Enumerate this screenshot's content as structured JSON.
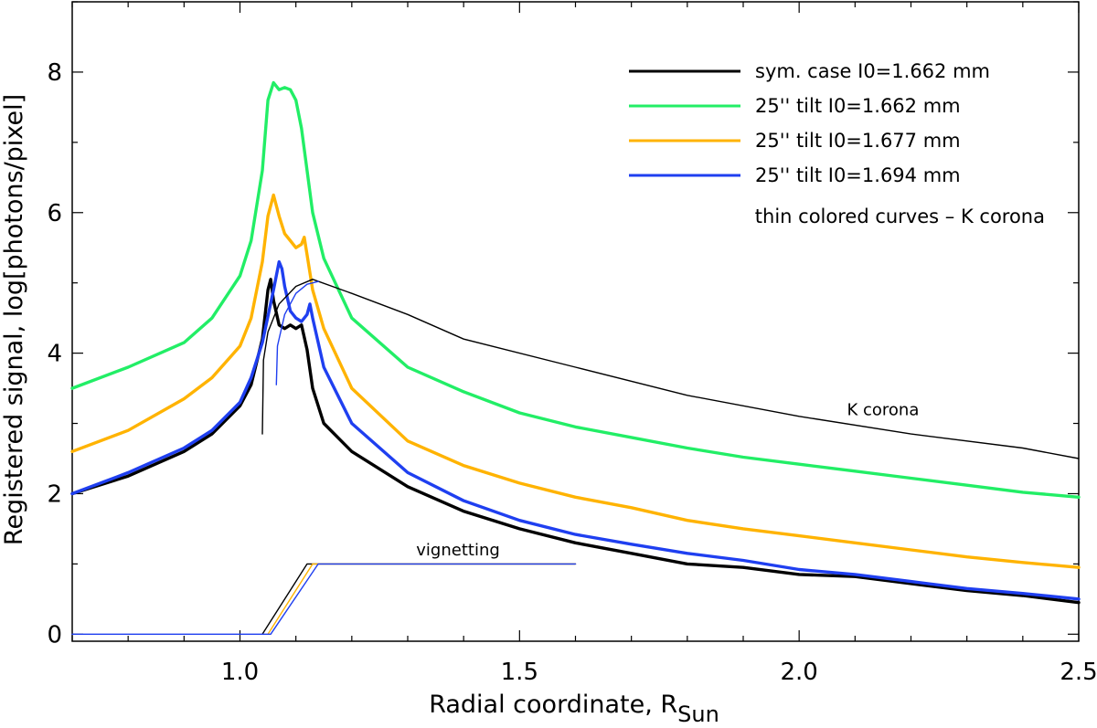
{
  "chart_data": {
    "type": "line",
    "xlabel": "Radial coordinate, R",
    "xlabel_subscript": "Sun",
    "ylabel": "Registered signal, log[photons/pixel]",
    "xlim": [
      0.7,
      2.5
    ],
    "ylim": [
      -0.1,
      9.0
    ],
    "x_ticks": [
      1.0,
      1.5,
      2.0,
      2.5
    ],
    "x_tick_labels": [
      "1.0",
      "1.5",
      "2.0",
      "2.5"
    ],
    "y_ticks": [
      0,
      2,
      4,
      6,
      8
    ],
    "y_tick_labels": [
      "0",
      "2",
      "4",
      "6",
      "8"
    ],
    "series": [
      {
        "name": "sym. case I0=1.662 mm",
        "color": "#000000",
        "width": "thick",
        "x": [
          0.7,
          0.8,
          0.9,
          0.95,
          1.0,
          1.02,
          1.04,
          1.05,
          1.055,
          1.06,
          1.07,
          1.08,
          1.09,
          1.1,
          1.11,
          1.12,
          1.13,
          1.15,
          1.2,
          1.3,
          1.4,
          1.5,
          1.6,
          1.7,
          1.8,
          1.9,
          2.0,
          2.1,
          2.2,
          2.3,
          2.4,
          2.5
        ],
        "y": [
          2.0,
          2.25,
          2.6,
          2.85,
          3.25,
          3.55,
          4.2,
          4.9,
          5.05,
          4.75,
          4.4,
          4.35,
          4.4,
          4.35,
          4.4,
          4.05,
          3.5,
          3.0,
          2.6,
          2.1,
          1.75,
          1.5,
          1.3,
          1.15,
          1.0,
          0.95,
          0.85,
          0.82,
          0.72,
          0.62,
          0.55,
          0.45
        ]
      },
      {
        "name": "25'' tilt  I0=1.662 mm",
        "color": "#22ee66",
        "width": "thick",
        "x": [
          0.7,
          0.8,
          0.9,
          0.95,
          1.0,
          1.02,
          1.04,
          1.05,
          1.06,
          1.07,
          1.08,
          1.09,
          1.1,
          1.11,
          1.12,
          1.13,
          1.15,
          1.2,
          1.3,
          1.4,
          1.5,
          1.6,
          1.7,
          1.8,
          1.9,
          2.0,
          2.1,
          2.2,
          2.3,
          2.4,
          2.5
        ],
        "y": [
          3.5,
          3.8,
          4.15,
          4.5,
          5.1,
          5.6,
          6.6,
          7.6,
          7.85,
          7.75,
          7.78,
          7.75,
          7.6,
          7.2,
          6.6,
          6.0,
          5.35,
          4.5,
          3.8,
          3.45,
          3.15,
          2.95,
          2.8,
          2.65,
          2.52,
          2.42,
          2.32,
          2.22,
          2.12,
          2.02,
          1.95
        ]
      },
      {
        "name": "25'' tilt  I0=1.677 mm",
        "color": "#ffb300",
        "width": "thick",
        "x": [
          0.7,
          0.8,
          0.9,
          0.95,
          1.0,
          1.02,
          1.04,
          1.05,
          1.06,
          1.07,
          1.08,
          1.09,
          1.1,
          1.11,
          1.115,
          1.12,
          1.13,
          1.15,
          1.2,
          1.3,
          1.4,
          1.5,
          1.6,
          1.7,
          1.8,
          1.9,
          2.0,
          2.1,
          2.2,
          2.3,
          2.4,
          2.5
        ],
        "y": [
          2.6,
          2.9,
          3.35,
          3.65,
          4.1,
          4.5,
          5.3,
          5.95,
          6.25,
          5.95,
          5.7,
          5.6,
          5.5,
          5.55,
          5.65,
          5.4,
          4.9,
          4.35,
          3.5,
          2.75,
          2.4,
          2.15,
          1.95,
          1.8,
          1.62,
          1.5,
          1.4,
          1.3,
          1.2,
          1.1,
          1.02,
          0.95
        ]
      },
      {
        "name": "25'' tilt  I0=1.694 mm",
        "color": "#1f3ff0",
        "width": "thick",
        "x": [
          0.7,
          0.8,
          0.9,
          0.95,
          1.0,
          1.02,
          1.04,
          1.06,
          1.07,
          1.075,
          1.08,
          1.09,
          1.1,
          1.11,
          1.12,
          1.125,
          1.13,
          1.15,
          1.2,
          1.3,
          1.4,
          1.5,
          1.6,
          1.7,
          1.8,
          1.9,
          2.0,
          2.1,
          2.2,
          2.3,
          2.4,
          2.5
        ],
        "y": [
          2.0,
          2.3,
          2.65,
          2.9,
          3.3,
          3.65,
          4.15,
          4.9,
          5.3,
          5.2,
          4.95,
          4.6,
          4.5,
          4.45,
          4.55,
          4.7,
          4.5,
          3.8,
          3.0,
          2.3,
          1.9,
          1.62,
          1.42,
          1.28,
          1.15,
          1.05,
          0.92,
          0.85,
          0.75,
          0.65,
          0.58,
          0.5
        ]
      },
      {
        "name": "K corona",
        "color": "#000000",
        "width": "thin",
        "x": [
          1.04,
          1.042,
          1.05,
          1.07,
          1.1,
          1.13,
          1.2,
          1.3,
          1.4,
          1.6,
          1.8,
          2.0,
          2.2,
          2.4,
          2.5
        ],
        "y": [
          2.85,
          3.9,
          4.3,
          4.7,
          4.95,
          5.05,
          4.85,
          4.55,
          4.2,
          3.8,
          3.4,
          3.1,
          2.85,
          2.65,
          2.5
        ]
      },
      {
        "name": "K corona (tilted)",
        "color": "#1f3ff0",
        "width": "thin",
        "x": [
          1.065,
          1.067,
          1.08,
          1.1,
          1.12,
          1.14
        ],
        "y": [
          3.55,
          4.1,
          4.55,
          4.85,
          4.98,
          5.02
        ]
      },
      {
        "name": "vignetting sym.",
        "color": "#000000",
        "width": "thin",
        "x": [
          1.04,
          1.12,
          1.6
        ],
        "y": [
          0.0,
          1.0,
          1.0
        ]
      },
      {
        "name": "vignetting 1.677",
        "color": "#ffb300",
        "width": "thin",
        "x": [
          1.05,
          1.13,
          1.6
        ],
        "y": [
          0.0,
          1.0,
          1.0
        ]
      },
      {
        "name": "vignetting 1.694",
        "color": "#1f3ff0",
        "width": "thin",
        "x": [
          0.7,
          1.055,
          1.14,
          1.6
        ],
        "y": [
          0.0,
          0.0,
          1.0,
          1.0
        ]
      }
    ],
    "legend": {
      "position": "top-right",
      "entries": [
        {
          "label": "sym. case I0=1.662 mm",
          "color": "#000000"
        },
        {
          "label": "25'' tilt  I0=1.662 mm",
          "color": "#22ee66"
        },
        {
          "label": "25'' tilt  I0=1.677 mm",
          "color": "#ffb300"
        },
        {
          "label": "25'' tilt  I0=1.694 mm",
          "color": "#1f3ff0"
        }
      ],
      "note": "thin colored curves – K corona"
    },
    "annotations": [
      {
        "text": "K corona",
        "x": 2.15,
        "y": 3.12
      },
      {
        "text": "vignetting",
        "x": 1.39,
        "y": 1.12
      }
    ]
  }
}
